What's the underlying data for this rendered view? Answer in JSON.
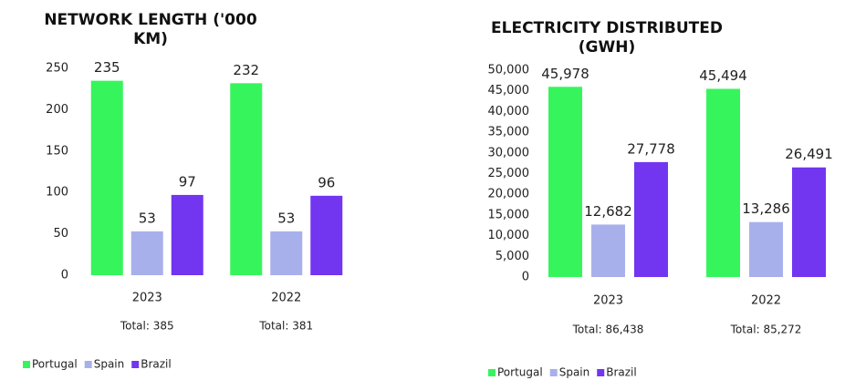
{
  "chart_data": [
    {
      "type": "bar",
      "title": "NETWORK LENGTH ('000 KM)",
      "categories": [
        "2023",
        "2022"
      ],
      "totals": [
        "Total: 385",
        "Total: 381"
      ],
      "series": [
        {
          "name": "Portugal",
          "color": "#36f55c",
          "values": [
            235,
            232
          ]
        },
        {
          "name": "Spain",
          "color": "#a8b0ec",
          "values": [
            53,
            53
          ]
        },
        {
          "name": "Brazil",
          "color": "#7235f0",
          "values": [
            97,
            96
          ]
        }
      ],
      "ylim": [
        0,
        250
      ],
      "yticks": [
        0,
        50,
        100,
        150,
        200,
        250
      ]
    },
    {
      "type": "bar",
      "title": "ELECTRICITY DISTRIBUTED (GWH)",
      "categories": [
        "2023",
        "2022"
      ],
      "totals": [
        "Total: 86,438",
        "Total: 85,272"
      ],
      "series": [
        {
          "name": "Portugal",
          "color": "#36f55c",
          "values": [
            45978,
            45494
          ],
          "value_labels": [
            "45,978",
            "45,494"
          ]
        },
        {
          "name": "Spain",
          "color": "#a8b0ec",
          "values": [
            12682,
            13286
          ],
          "value_labels": [
            "12,682",
            "13,286"
          ]
        },
        {
          "name": "Brazil",
          "color": "#7235f0",
          "values": [
            27778,
            26491
          ],
          "value_labels": [
            "27,778",
            "26,491"
          ]
        }
      ],
      "ylim": [
        0,
        50000
      ],
      "yticks": [
        0,
        {
          "value": 5000,
          "label": "5,000"
        },
        {
          "value": 10000,
          "label": "10,000"
        },
        {
          "value": 15000,
          "label": "15,000"
        },
        {
          "value": 20000,
          "label": "20,000"
        },
        {
          "value": 25000,
          "label": "25,000"
        },
        {
          "value": 30000,
          "label": "30,000"
        },
        {
          "value": 35000,
          "label": "35,000"
        },
        {
          "value": 40000,
          "label": "40,000"
        },
        {
          "value": 45000,
          "label": "45,000"
        },
        {
          "value": 50000,
          "label": "50,000"
        }
      ]
    }
  ]
}
